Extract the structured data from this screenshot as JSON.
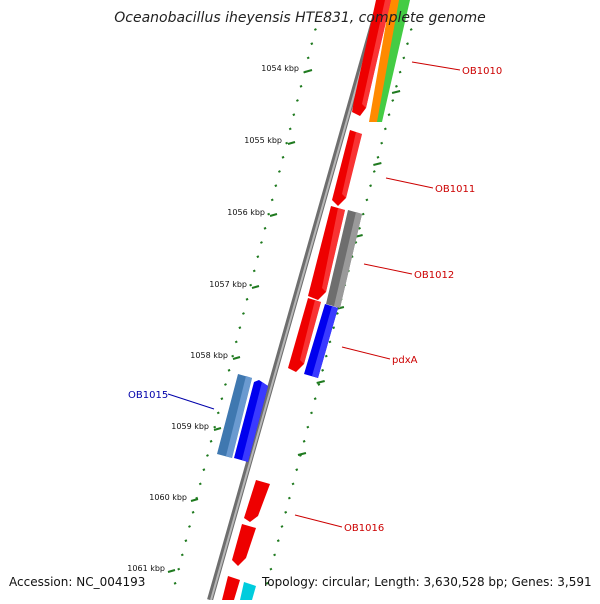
{
  "title": "Oceanobacillus iheyensis HTE831, complete genome",
  "footer": {
    "accession": "Accession: NC_004193",
    "summary": "Topology: circular; Length: 3,630,528 bp; Genes: 3,591"
  },
  "colors": {
    "backbone": "#8c8c8c",
    "ticks": "#1f7a1f",
    "label_red": "#cc0000",
    "label_blue": "#0000aa"
  },
  "kbp_ticks": [
    "1054 kbp",
    "1055 kbp",
    "1056 kbp",
    "1057 kbp",
    "1058 kbp",
    "1059 kbp",
    "1060 kbp",
    "1061 kbp"
  ],
  "genes": [
    {
      "label": "OB1010",
      "color": "#cc0000"
    },
    {
      "label": "OB1011",
      "color": "#cc0000"
    },
    {
      "label": "OB1012",
      "color": "#cc0000"
    },
    {
      "label": "pdxA",
      "color": "#cc0000"
    },
    {
      "label": "OB1015",
      "color": "#0000aa"
    },
    {
      "label": "OB1016",
      "color": "#cc0000"
    }
  ]
}
